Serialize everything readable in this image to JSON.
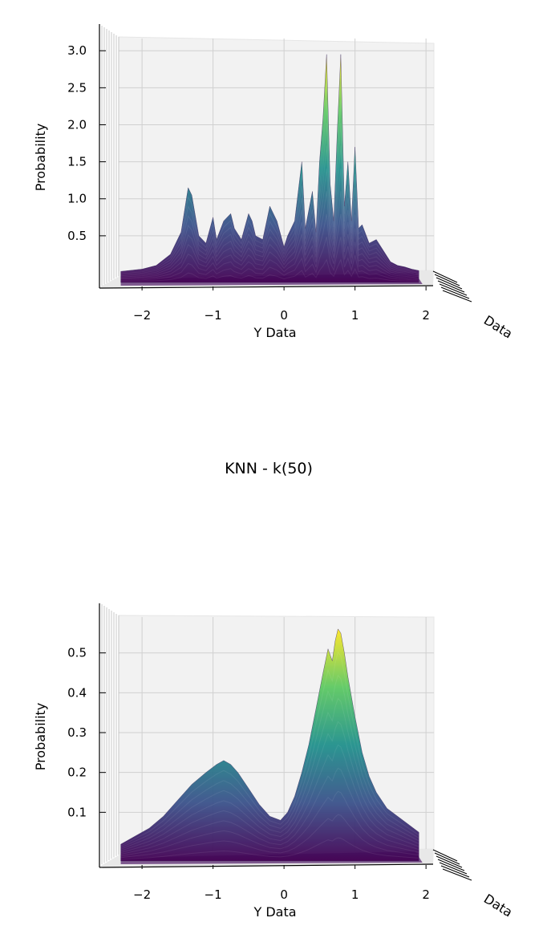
{
  "chart_data": [
    {
      "type": "surface",
      "title": "",
      "xlabel": "Y Data",
      "ylabel": "Probability",
      "depth_label": "Data",
      "xticks": [
        "−2",
        "−1",
        "0",
        "1",
        "2"
      ],
      "xtick_values": [
        -2,
        -1,
        0,
        1,
        2
      ],
      "yticks": [
        "0.5",
        "1.0",
        "1.5",
        "2.0",
        "2.5",
        "3.0"
      ],
      "ytick_values": [
        0.5,
        1.0,
        1.5,
        2.0,
        2.5,
        3.0
      ],
      "xlim": [
        -2.6,
        2.1
      ],
      "ylim": [
        0,
        3.1
      ],
      "grid": true,
      "colormap": [
        "#440154",
        "#3b528b",
        "#21918c",
        "#5ec962",
        "#fde725"
      ],
      "profile": {
        "x": [
          -2.3,
          -2.0,
          -1.8,
          -1.6,
          -1.45,
          -1.35,
          -1.3,
          -1.2,
          -1.1,
          -1.0,
          -0.95,
          -0.85,
          -0.75,
          -0.7,
          -0.6,
          -0.5,
          -0.45,
          -0.4,
          -0.3,
          -0.2,
          -0.1,
          0.0,
          0.05,
          0.15,
          0.25,
          0.3,
          0.4,
          0.45,
          0.5,
          0.55,
          0.6,
          0.65,
          0.7,
          0.75,
          0.8,
          0.85,
          0.9,
          0.95,
          1.0,
          1.05,
          1.1,
          1.2,
          1.3,
          1.4,
          1.5,
          1.6,
          1.7,
          1.8,
          1.9
        ],
        "y": [
          0.02,
          0.05,
          0.1,
          0.25,
          0.55,
          1.15,
          1.05,
          0.5,
          0.4,
          0.75,
          0.45,
          0.7,
          0.8,
          0.6,
          0.45,
          0.8,
          0.7,
          0.5,
          0.45,
          0.9,
          0.7,
          0.35,
          0.5,
          0.7,
          1.5,
          0.6,
          1.1,
          0.55,
          1.5,
          2.1,
          2.95,
          1.2,
          0.7,
          1.9,
          2.95,
          0.9,
          1.5,
          0.7,
          1.7,
          0.6,
          0.65,
          0.4,
          0.45,
          0.3,
          0.15,
          0.1,
          0.08,
          0.05,
          0.03
        ]
      }
    },
    {
      "type": "surface",
      "title": "KNN - k(50)",
      "xlabel": "Y Data",
      "ylabel": "Probability",
      "depth_label": "Data",
      "xticks": [
        "−2",
        "−1",
        "0",
        "1",
        "2"
      ],
      "xtick_values": [
        -2,
        -1,
        0,
        1,
        2
      ],
      "yticks": [
        "0.1",
        "0.2",
        "0.3",
        "0.4",
        "0.5"
      ],
      "ytick_values": [
        0.1,
        0.2,
        0.3,
        0.4,
        0.5
      ],
      "xlim": [
        -2.6,
        2.1
      ],
      "ylim": [
        0,
        0.59
      ],
      "grid": true,
      "colormap": [
        "#440154",
        "#3b528b",
        "#21918c",
        "#5ec962",
        "#fde725"
      ],
      "profile": {
        "x": [
          -2.3,
          -2.1,
          -1.9,
          -1.7,
          -1.5,
          -1.3,
          -1.1,
          -0.95,
          -0.85,
          -0.75,
          -0.65,
          -0.5,
          -0.35,
          -0.2,
          -0.05,
          0.05,
          0.15,
          0.25,
          0.35,
          0.45,
          0.55,
          0.62,
          0.68,
          0.72,
          0.76,
          0.8,
          0.85,
          0.9,
          1.0,
          1.1,
          1.2,
          1.3,
          1.45,
          1.6,
          1.75,
          1.9
        ],
        "y": [
          0.02,
          0.04,
          0.06,
          0.09,
          0.13,
          0.17,
          0.2,
          0.22,
          0.23,
          0.22,
          0.2,
          0.16,
          0.12,
          0.09,
          0.08,
          0.1,
          0.14,
          0.2,
          0.27,
          0.36,
          0.45,
          0.51,
          0.48,
          0.53,
          0.56,
          0.55,
          0.5,
          0.44,
          0.34,
          0.25,
          0.19,
          0.15,
          0.11,
          0.09,
          0.07,
          0.05
        ]
      }
    }
  ]
}
